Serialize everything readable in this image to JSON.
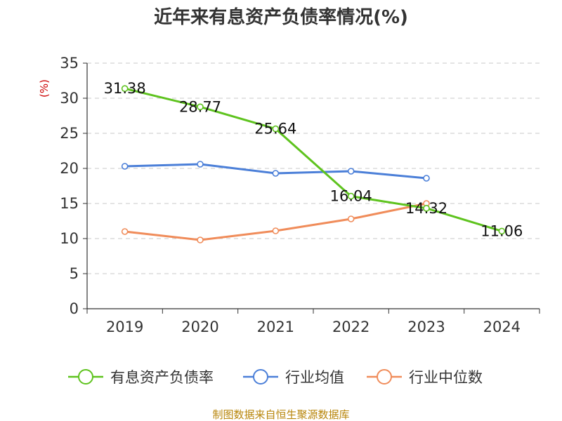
{
  "colors": {
    "debt_ratio": "#5ec31e",
    "industry_avg": "#4b7fd8",
    "industry_median": "#f08c5a",
    "grid": "#c8c8c8",
    "axis": "#333333",
    "unit": "#cc0000",
    "source": "#b8860b"
  },
  "chart_data": {
    "type": "line",
    "title": "近年来有息资产负债率情况(%)",
    "ylabel": "(%)",
    "xlabel": "",
    "categories": [
      "2019",
      "2020",
      "2021",
      "2022",
      "2023",
      "2024"
    ],
    "ylim": [
      0,
      35
    ],
    "yticks": [
      0,
      5,
      10,
      15,
      20,
      25,
      30,
      35
    ],
    "grid": true,
    "legend_position": "bottom",
    "series": [
      {
        "name": "有息资产负债率",
        "color_key": "debt_ratio",
        "values": [
          31.38,
          28.77,
          25.64,
          16.04,
          14.32,
          11.06
        ],
        "labels": [
          "31.38",
          "28.77",
          "25.64",
          "16.04",
          "14.32",
          "11.06"
        ]
      },
      {
        "name": "行业均值",
        "color_key": "industry_avg",
        "values": [
          20.3,
          20.6,
          19.3,
          19.6,
          18.6,
          null
        ]
      },
      {
        "name": "行业中位数",
        "color_key": "industry_median",
        "values": [
          11.0,
          9.8,
          11.1,
          12.8,
          15.0,
          null
        ]
      }
    ],
    "source": "制图数据来自恒生聚源数据库"
  }
}
